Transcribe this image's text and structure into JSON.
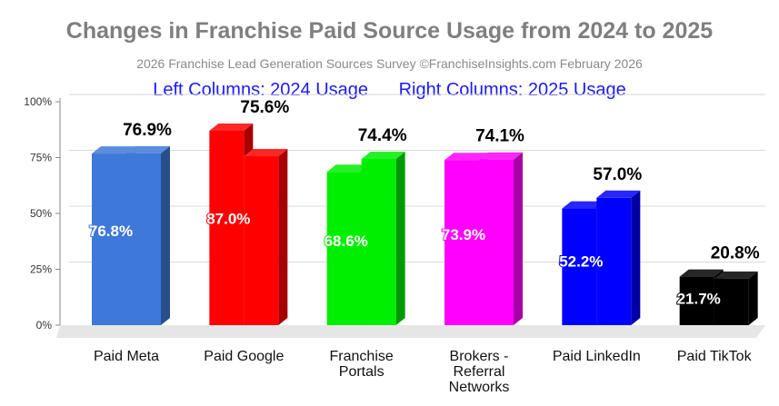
{
  "chart_data": {
    "type": "bar",
    "title": "Changes in Franchise Paid Source Usage from 2024 to 2025",
    "subtitle": "2026 Franchise Lead Generation Sources Survey    ©FranchiseInsights.com February 2026",
    "legend": {
      "left": "Left Columns: 2024 Usage",
      "right": "Right Columns: 2025 Usage",
      "placement": "top-center"
    },
    "categories": [
      "Paid Meta",
      "Paid Google",
      "Franchise Portals",
      "Brokers - Referral Networks",
      "Paid LinkedIn",
      "Paid TikTok"
    ],
    "category_lines": [
      [
        "Paid Meta"
      ],
      [
        "Paid Google"
      ],
      [
        "Franchise",
        "Portals"
      ],
      [
        "Brokers -",
        "Referral",
        "Networks"
      ],
      [
        "Paid LinkedIn"
      ],
      [
        "Paid TikTok"
      ]
    ],
    "series": [
      {
        "name": "2024 Usage",
        "values": [
          76.8,
          87.0,
          68.6,
          73.9,
          52.2,
          21.7
        ],
        "labels": [
          "76.8%",
          "87.0%",
          "68.6%",
          "73.9%",
          "52.2%",
          "21.7%"
        ]
      },
      {
        "name": "2025 Usage",
        "values": [
          76.9,
          75.6,
          74.4,
          74.1,
          57.0,
          20.8
        ],
        "labels": [
          "76.9%",
          "75.6%",
          "74.4%",
          "74.1%",
          "57.0%",
          "20.8%"
        ]
      }
    ],
    "bar_colors": [
      "#3e78d8",
      "#ff0000",
      "#00ee00",
      "#ff00ff",
      "#0000ff",
      "#000000"
    ],
    "ylim": [
      0,
      100
    ],
    "yticks": [
      0,
      25,
      50,
      75,
      100
    ],
    "ytick_labels": [
      "0%",
      "25%",
      "50%",
      "75%",
      "100%"
    ],
    "grid": true
  }
}
